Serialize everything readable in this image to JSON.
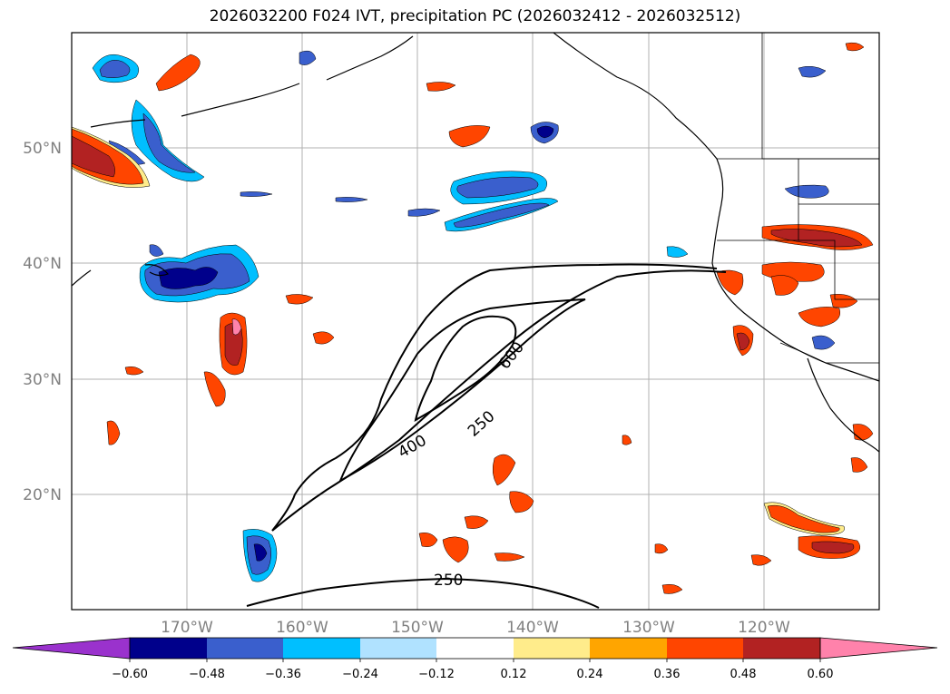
{
  "title": "2026032200 F024 IVT, precipitation PC (2026032412 - 2026032512)",
  "axes": {
    "latitudes": [
      "50°N",
      "40°N",
      "30°N",
      "20°N"
    ],
    "longitudes": [
      "170°W",
      "160°W",
      "150°W",
      "140°W",
      "130°W",
      "120°W"
    ]
  },
  "ivt_contours": {
    "labels": [
      "600",
      "250",
      "400",
      "250"
    ],
    "line_color": "#000000"
  },
  "colorbar": {
    "ticks": [
      "−0.60",
      "−0.48",
      "−0.36",
      "−0.24",
      "−0.12",
      "0.12",
      "0.24",
      "0.36",
      "0.48",
      "0.60"
    ],
    "colors": [
      "#9a32cd",
      "#00008b",
      "#3a5fcd",
      "#00bfff",
      "#b0e2ff",
      "#ffffff",
      "#ffec8b",
      "#ffa500",
      "#ff4500",
      "#b22222",
      "#ff82ab"
    ]
  },
  "colors": {
    "negative_dark": "#00008b",
    "negative_mid": "#3a5fcd",
    "negative_light": "#00bfff",
    "positive_light": "#ffec8b",
    "positive_mid": "#ffa500",
    "positive_strong": "#ff4500",
    "positive_dark": "#b22222",
    "positive_max": "#ff82ab",
    "grid": "#b0b0b0",
    "coast": "#000000"
  }
}
